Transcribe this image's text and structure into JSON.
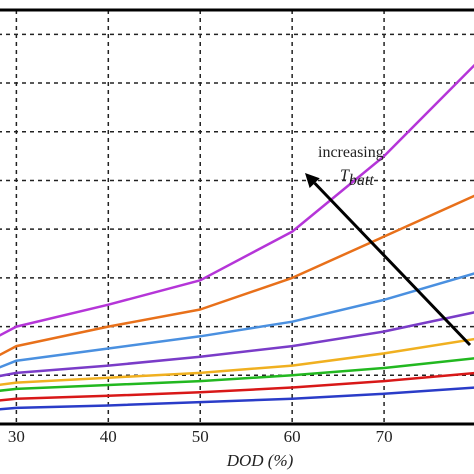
{
  "chart_data": {
    "type": "line",
    "title": "",
    "xlabel": "DOD (%)",
    "ylabel": "",
    "xlim": [
      28,
      80
    ],
    "ylim": [
      0,
      8.5
    ],
    "x_ticks": [
      30,
      40,
      50,
      60,
      70
    ],
    "grid": true,
    "legend": "none",
    "annotation": {
      "text": "increasing",
      "subscript_text": "T_batt",
      "arrow": "from lower-right toward upper-left"
    },
    "x": [
      28,
      30,
      40,
      50,
      60,
      70,
      80
    ],
    "series": [
      {
        "color": "#b535d8",
        "values": [
          1.8,
          2.0,
          2.45,
          2.95,
          3.95,
          5.5,
          7.4
        ]
      },
      {
        "color": "#e8701a",
        "values": [
          1.4,
          1.6,
          2.0,
          2.35,
          3.0,
          3.85,
          4.7
        ]
      },
      {
        "color": "#4a90e0",
        "values": [
          1.15,
          1.3,
          1.55,
          1.8,
          2.1,
          2.55,
          3.1
        ]
      },
      {
        "color": "#7a3cc8",
        "values": [
          0.98,
          1.05,
          1.2,
          1.38,
          1.6,
          1.9,
          2.3
        ]
      },
      {
        "color": "#f0b020",
        "values": [
          0.8,
          0.85,
          0.95,
          1.05,
          1.2,
          1.45,
          1.75
        ]
      },
      {
        "color": "#22b820",
        "values": [
          0.68,
          0.72,
          0.8,
          0.88,
          1.0,
          1.15,
          1.35
        ]
      },
      {
        "color": "#d81818",
        "values": [
          0.48,
          0.52,
          0.58,
          0.65,
          0.75,
          0.88,
          1.05
        ]
      },
      {
        "color": "#2a3cc8",
        "values": [
          0.3,
          0.33,
          0.38,
          0.45,
          0.52,
          0.62,
          0.75
        ]
      }
    ]
  }
}
